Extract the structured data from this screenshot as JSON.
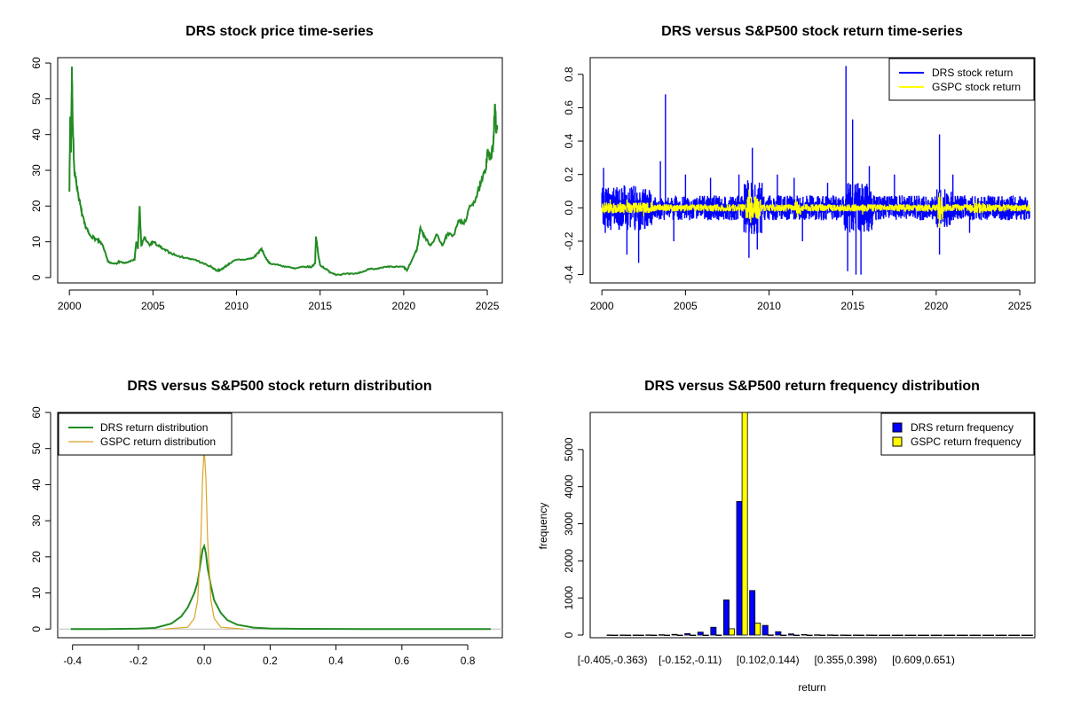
{
  "colors": {
    "drs_price": "#228B22",
    "drs_return": "#0000FF",
    "gspc_return": "#FFFF00",
    "drs_density": "#228B22",
    "gspc_density": "#DAA520",
    "drs_bar": "#0000FF",
    "gspc_bar": "#FFFF00"
  },
  "chart_data": [
    {
      "type": "line",
      "title": "DRS stock price time-series",
      "xlabel": "",
      "ylabel": "",
      "xlim": [
        1999.3,
        2025.9
      ],
      "ylim": [
        -1.5,
        61.5
      ],
      "x_ticks": [
        "2000",
        "2005",
        "2010",
        "2015",
        "2020",
        "2025"
      ],
      "y_ticks": [
        "0",
        "10",
        "20",
        "30",
        "40",
        "50",
        "60"
      ],
      "grid": false,
      "series": [
        {
          "x": [
            2000.0,
            2000.05,
            2000.1,
            2000.15,
            2000.2,
            2000.3,
            2000.4,
            2000.5,
            2000.7,
            2000.9,
            2001.0,
            2001.2,
            2001.5,
            2001.8,
            2002.0,
            2002.3,
            2002.5,
            2002.8,
            2003.0,
            2003.3,
            2003.6,
            2003.9,
            2004.0,
            2004.1,
            2004.2,
            2004.3,
            2004.5,
            2004.8,
            2005.0,
            2005.3,
            2005.6,
            2006.0,
            2006.5,
            2007.0,
            2007.5,
            2008.0,
            2008.5,
            2008.8,
            2009.0,
            2009.3,
            2009.6,
            2010.0,
            2010.5,
            2011.0,
            2011.3,
            2011.5,
            2011.8,
            2012.0,
            2012.5,
            2013.0,
            2013.5,
            2014.0,
            2014.5,
            2014.7,
            2014.75,
            2014.9,
            2015.0,
            2015.3,
            2015.6,
            2016.0,
            2016.5,
            2017.0,
            2017.5,
            2018.0,
            2018.5,
            2019.0,
            2019.5,
            2020.0,
            2020.2,
            2020.5,
            2020.8,
            2021.0,
            2021.3,
            2021.6,
            2022.0,
            2022.3,
            2022.6,
            2023.0,
            2023.3,
            2023.6,
            2024.0,
            2024.3,
            2024.6,
            2024.9,
            2025.0,
            2025.2,
            2025.35,
            2025.45,
            2025.55,
            2025.6
          ],
          "values": [
            24,
            45,
            35,
            59,
            42,
            30,
            27,
            24,
            19,
            15,
            14,
            12,
            11,
            10,
            9,
            4.5,
            4,
            4,
            4.5,
            4,
            4.5,
            5,
            10,
            8,
            20,
            9,
            11,
            9,
            10,
            9,
            8,
            7,
            6,
            5.5,
            5,
            4,
            3,
            2,
            2,
            3,
            4,
            5,
            5,
            5.5,
            7,
            8,
            5,
            4,
            3.5,
            3,
            2.5,
            3,
            3,
            4,
            11.5,
            6,
            3.5,
            2.5,
            1.5,
            0.8,
            1,
            1,
            1.5,
            2.5,
            2.5,
            3,
            3,
            3,
            2,
            5,
            8,
            14,
            11,
            9,
            12,
            9,
            12,
            12,
            16,
            15,
            20,
            22,
            26,
            30,
            35,
            33,
            37,
            48,
            41,
            42
          ]
        }
      ]
    },
    {
      "type": "line",
      "title": "DRS versus S&P500 stock return time-series",
      "xlabel": "",
      "ylabel": "",
      "xlim": [
        1999.3,
        2025.9
      ],
      "ylim": [
        -0.45,
        0.9
      ],
      "x_ticks": [
        "2000",
        "2005",
        "2010",
        "2015",
        "2020",
        "2025"
      ],
      "y_ticks": [
        "-0.4",
        "-0.2",
        "0.0",
        "0.2",
        "0.4",
        "0.6",
        "0.8"
      ],
      "legend": "top-right",
      "grid": false,
      "series": [
        {
          "name": "DRS stock return",
          "spikes": [
            [
              2000.1,
              0.24
            ],
            [
              2000.2,
              -0.15
            ],
            [
              2001.5,
              -0.28
            ],
            [
              2002.2,
              -0.33
            ],
            [
              2003.5,
              0.28
            ],
            [
              2003.8,
              0.68
            ],
            [
              2004.3,
              -0.2
            ],
            [
              2005.0,
              0.2
            ],
            [
              2006.5,
              0.18
            ],
            [
              2008.2,
              0.2
            ],
            [
              2008.8,
              -0.3
            ],
            [
              2009.0,
              0.36
            ],
            [
              2009.3,
              -0.25
            ],
            [
              2010.5,
              0.2
            ],
            [
              2011.5,
              0.18
            ],
            [
              2012.0,
              -0.2
            ],
            [
              2013.5,
              0.15
            ],
            [
              2014.6,
              0.85
            ],
            [
              2014.7,
              -0.38
            ],
            [
              2015.0,
              0.53
            ],
            [
              2015.2,
              -0.4
            ],
            [
              2015.5,
              -0.4
            ],
            [
              2016.0,
              0.25
            ],
            [
              2017.5,
              0.2
            ],
            [
              2020.2,
              0.44
            ],
            [
              2020.2,
              -0.28
            ],
            [
              2021.0,
              0.2
            ],
            [
              2022.0,
              -0.15
            ]
          ]
        },
        {
          "name": "GSPC stock return",
          "spikes": [
            [
              2000.5,
              0.05
            ],
            [
              2001.5,
              0.05
            ],
            [
              2002.5,
              -0.05
            ],
            [
              2003.0,
              0.04
            ],
            [
              2008.8,
              0.11
            ],
            [
              2008.9,
              -0.09
            ],
            [
              2009.2,
              0.07
            ],
            [
              2011.6,
              0.05
            ],
            [
              2011.7,
              -0.06
            ],
            [
              2015.6,
              -0.04
            ],
            [
              2020.2,
              0.09
            ],
            [
              2020.2,
              -0.12
            ],
            [
              2022.4,
              0.05
            ]
          ]
        }
      ]
    },
    {
      "type": "line",
      "title": "DRS versus S&P500 stock return distribution",
      "xlabel": "",
      "ylabel": "",
      "xlim": [
        -0.445,
        0.905
      ],
      "ylim": [
        -2.4,
        60
      ],
      "x_ticks": [
        "-0.4",
        "-0.2",
        "0.0",
        "0.2",
        "0.4",
        "0.6",
        "0.8"
      ],
      "y_ticks": [
        "0",
        "10",
        "20",
        "30",
        "40",
        "50",
        "60"
      ],
      "legend": "top-left",
      "grid": false,
      "series": [
        {
          "name": "DRS return distribution",
          "x": [
            -0.405,
            -0.3,
            -0.2,
            -0.15,
            -0.1,
            -0.07,
            -0.05,
            -0.03,
            -0.02,
            -0.01,
            -0.005,
            0.0,
            0.005,
            0.01,
            0.02,
            0.03,
            0.05,
            0.07,
            0.1,
            0.15,
            0.2,
            0.3,
            0.5,
            0.7,
            0.87
          ],
          "values": [
            0,
            0,
            0.1,
            0.3,
            1.5,
            3.5,
            6,
            10,
            13,
            19,
            22,
            23,
            21,
            17,
            12,
            8,
            4.5,
            2.5,
            1.2,
            0.4,
            0.15,
            0.05,
            0,
            0,
            0
          ]
        },
        {
          "name": "GSPC return distribution",
          "x": [
            -0.12,
            -0.05,
            -0.03,
            -0.02,
            -0.01,
            -0.005,
            0.0,
            0.005,
            0.01,
            0.02,
            0.03,
            0.05,
            0.12
          ],
          "values": [
            0,
            0.5,
            3,
            8,
            25,
            42,
            50,
            42,
            25,
            8,
            3,
            0.5,
            0
          ]
        }
      ]
    },
    {
      "type": "bar",
      "title": "DRS versus S&P500 return frequency distribution",
      "xlabel": "return",
      "ylabel": "frequency",
      "ylim": [
        0,
        6000
      ],
      "y_ticks": [
        "0",
        "1000",
        "2000",
        "3000",
        "4000",
        "5000"
      ],
      "x_tick_labels": [
        "[-0.405,-0.363)",
        "[-0.152,-0.11)",
        "[0.102,0.144)",
        "[0.355,0.398)",
        "[0.609,0.651)"
      ],
      "legend": "top-right",
      "grid": false,
      "series": [
        {
          "name": "DRS return frequency",
          "values": [
            2,
            3,
            3,
            5,
            10,
            20,
            40,
            80,
            210,
            950,
            3600,
            1200,
            260,
            90,
            30,
            15,
            8,
            5,
            3,
            2,
            2,
            1,
            1,
            1,
            1,
            1,
            1,
            1,
            0,
            0,
            1,
            0,
            0
          ]
        },
        {
          "name": "GSPC return frequency",
          "values": [
            0,
            0,
            0,
            0,
            0,
            0,
            0,
            0,
            3,
            170,
            6300,
            320,
            5,
            0,
            0,
            0,
            0,
            0,
            0,
            0,
            0,
            0,
            0,
            0,
            0,
            0,
            0,
            0,
            0,
            0,
            0,
            0,
            0
          ]
        }
      ]
    }
  ]
}
